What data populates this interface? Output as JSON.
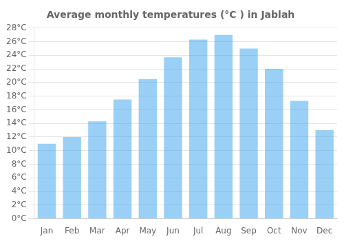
{
  "chart_data": {
    "type": "bar",
    "title": "Average monthly temperatures (°C ) in Jablah",
    "categories": [
      "Jan",
      "Feb",
      "Mar",
      "Apr",
      "May",
      "Jun",
      "Jul",
      "Aug",
      "Sep",
      "Oct",
      "Nov",
      "Dec"
    ],
    "values": [
      11,
      12,
      14.3,
      17.5,
      20.5,
      23.7,
      26.3,
      27,
      25,
      22,
      17.3,
      13
    ],
    "ylim": [
      0,
      28
    ],
    "yticks": [
      {
        "value": 0,
        "label": "0°C"
      },
      {
        "value": 2,
        "label": "2°C"
      },
      {
        "value": 4,
        "label": "4°C"
      },
      {
        "value": 6,
        "label": "6°C"
      },
      {
        "value": 8,
        "label": "8°C"
      },
      {
        "value": 10,
        "label": "10°C"
      },
      {
        "value": 12,
        "label": "12°C"
      },
      {
        "value": 14,
        "label": "14°C"
      },
      {
        "value": 16,
        "label": "16°C"
      },
      {
        "value": 18,
        "label": "18°C"
      },
      {
        "value": 20,
        "label": "20°C"
      },
      {
        "value": 22,
        "label": "22°C"
      },
      {
        "value": 24,
        "label": "24°C"
      },
      {
        "value": 26,
        "label": "26°C"
      },
      {
        "value": 28,
        "label": "28°C"
      }
    ],
    "grid": true
  }
}
